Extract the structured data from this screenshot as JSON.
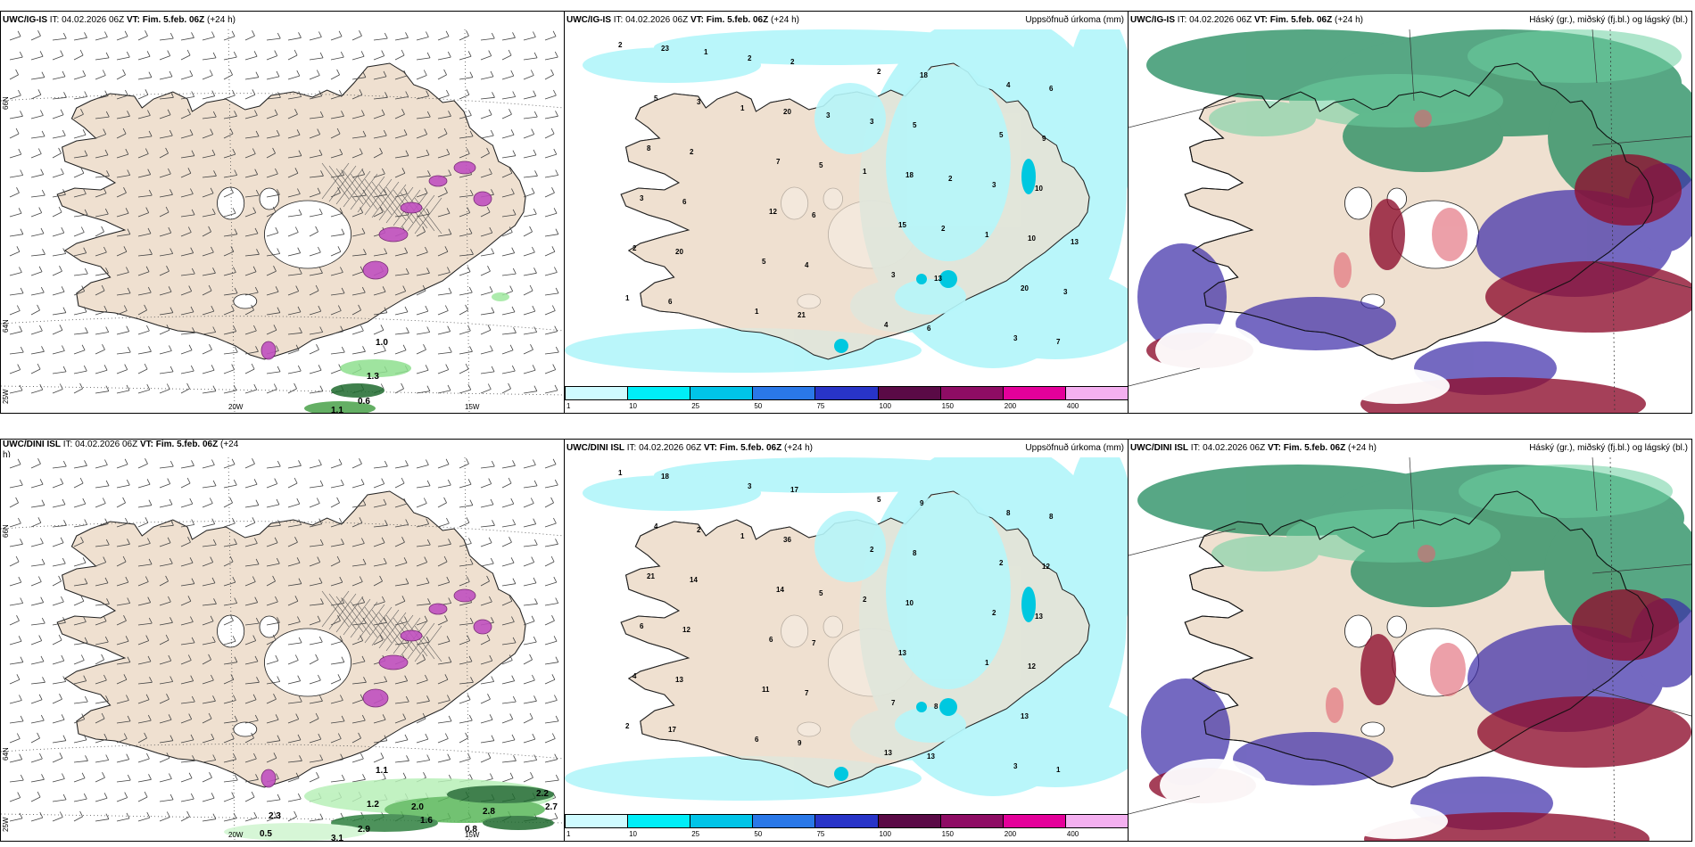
{
  "panels": {
    "wind_top": {
      "model": "UWC/IG-IS",
      "it": "IT: 04.02.2026 06Z",
      "vt": "VT: Fim. 5.feb. 06Z",
      "lead": "(+24 h)"
    },
    "precip_top": {
      "model": "UWC/IG-IS",
      "it": "IT: 04.02.2026 06Z",
      "vt": "VT: Fim. 5.feb. 06Z",
      "lead": "(+24 h)",
      "right": "Uppsöfnuð úrkoma (mm)"
    },
    "cloud_top": {
      "model": "UWC/IG-IS",
      "it": "IT: 04.02.2026 06Z",
      "vt": "VT: Fim. 5.feb. 06Z",
      "lead": "(+24 h)",
      "right": "Háský (gr.), miðský (fj.bl.) og lágský (bl.)"
    },
    "wind_bottom": {
      "model": "UWC/DINI ISL",
      "it": "IT: 04.02.2026 06Z",
      "vt": "VT: Fim. 5.feb. 06Z",
      "lead": "(+24",
      "lead2": "h)"
    },
    "precip_bottom": {
      "model": "UWC/DINI ISL",
      "it": "IT: 04.02.2026 06Z",
      "vt": "VT: Fim. 5.feb. 06Z",
      "lead": "(+24 h)",
      "right": "Uppsöfnuð úrkoma (mm)"
    },
    "cloud_bottom": {
      "model": "UWC/DINI ISL",
      "it": "IT: 04.02.2026 06Z",
      "vt": "VT: Fim. 5.feb. 06Z",
      "lead": "(+24 h)",
      "right": "Háský (gr.), miðský (fj.bl.) og lágský (bl.)"
    }
  },
  "axis_labels": {
    "lon_left": "20W",
    "lon_right": "15W",
    "lat_top": "66N",
    "lat_bottom": "64N",
    "lon_corner": "25W"
  },
  "colorbar": {
    "ticks": [
      "1",
      "10",
      "25",
      "50",
      "75",
      "100",
      "150",
      "200",
      "400"
    ],
    "colors": [
      "#cffbff",
      "#00eef8",
      "#00c4e8",
      "#2a78e8",
      "#2834c8",
      "#5a0a46",
      "#8e0c64",
      "#e4009a",
      "#f4b0f0"
    ]
  },
  "top_precip_values": [
    "2",
    "1",
    "1",
    "1",
    "1",
    "2",
    "3",
    "3",
    "2",
    "1",
    "2",
    "5",
    "3",
    "5",
    "4",
    "4",
    "8",
    "12",
    "3",
    "3",
    "5",
    "7",
    "15",
    "20",
    "23",
    "20",
    "18",
    "10",
    "6",
    "2",
    "5",
    "10",
    "20",
    "21",
    "18",
    "9",
    "6",
    "4",
    "6",
    "6",
    "2",
    "6",
    "13",
    "7",
    "3",
    "5",
    "2",
    "3",
    "1",
    "3",
    "2",
    "13"
  ],
  "bottom_precip_values": [
    "1",
    "1",
    "2",
    "1",
    "2",
    "3",
    "2",
    "2",
    "4",
    "6",
    "5",
    "2",
    "6",
    "11",
    "13",
    "8",
    "21",
    "6",
    "7",
    "3",
    "4",
    "14",
    "13",
    "13",
    "18",
    "36",
    "10",
    "12",
    "17",
    "17",
    "8",
    "13",
    "13",
    "9",
    "9",
    "12",
    "12",
    "7",
    "13",
    "8",
    "14",
    "7",
    "8",
    "1",
    "2",
    "5"
  ],
  "top_wind_values": [
    "1.0",
    "1.3",
    "0.6",
    "1.1"
  ],
  "bottom_wind_values": [
    "1.1",
    "1.2",
    "2.9",
    "3.1",
    "2.8",
    "2.2",
    "2.7",
    "2.0",
    "1.6",
    "0.8",
    "2.3",
    "0.5"
  ],
  "colors": {
    "land": "#efe0d0",
    "sea_precip": "#b6f6fa",
    "hatch": "#555555",
    "snow": "#c050c0",
    "rain_green": "#2a7a3a"
  }
}
